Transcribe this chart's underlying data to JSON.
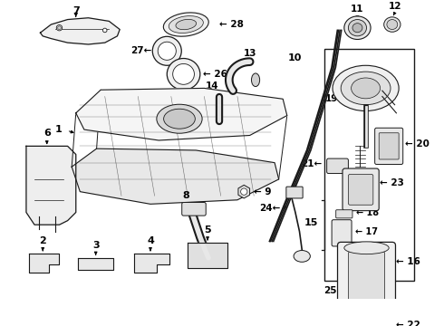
{
  "bg_color": "#ffffff",
  "lc": "#1a1a1a",
  "tc": "#000000",
  "figsize": [
    4.9,
    3.6
  ],
  "dpi": 100
}
